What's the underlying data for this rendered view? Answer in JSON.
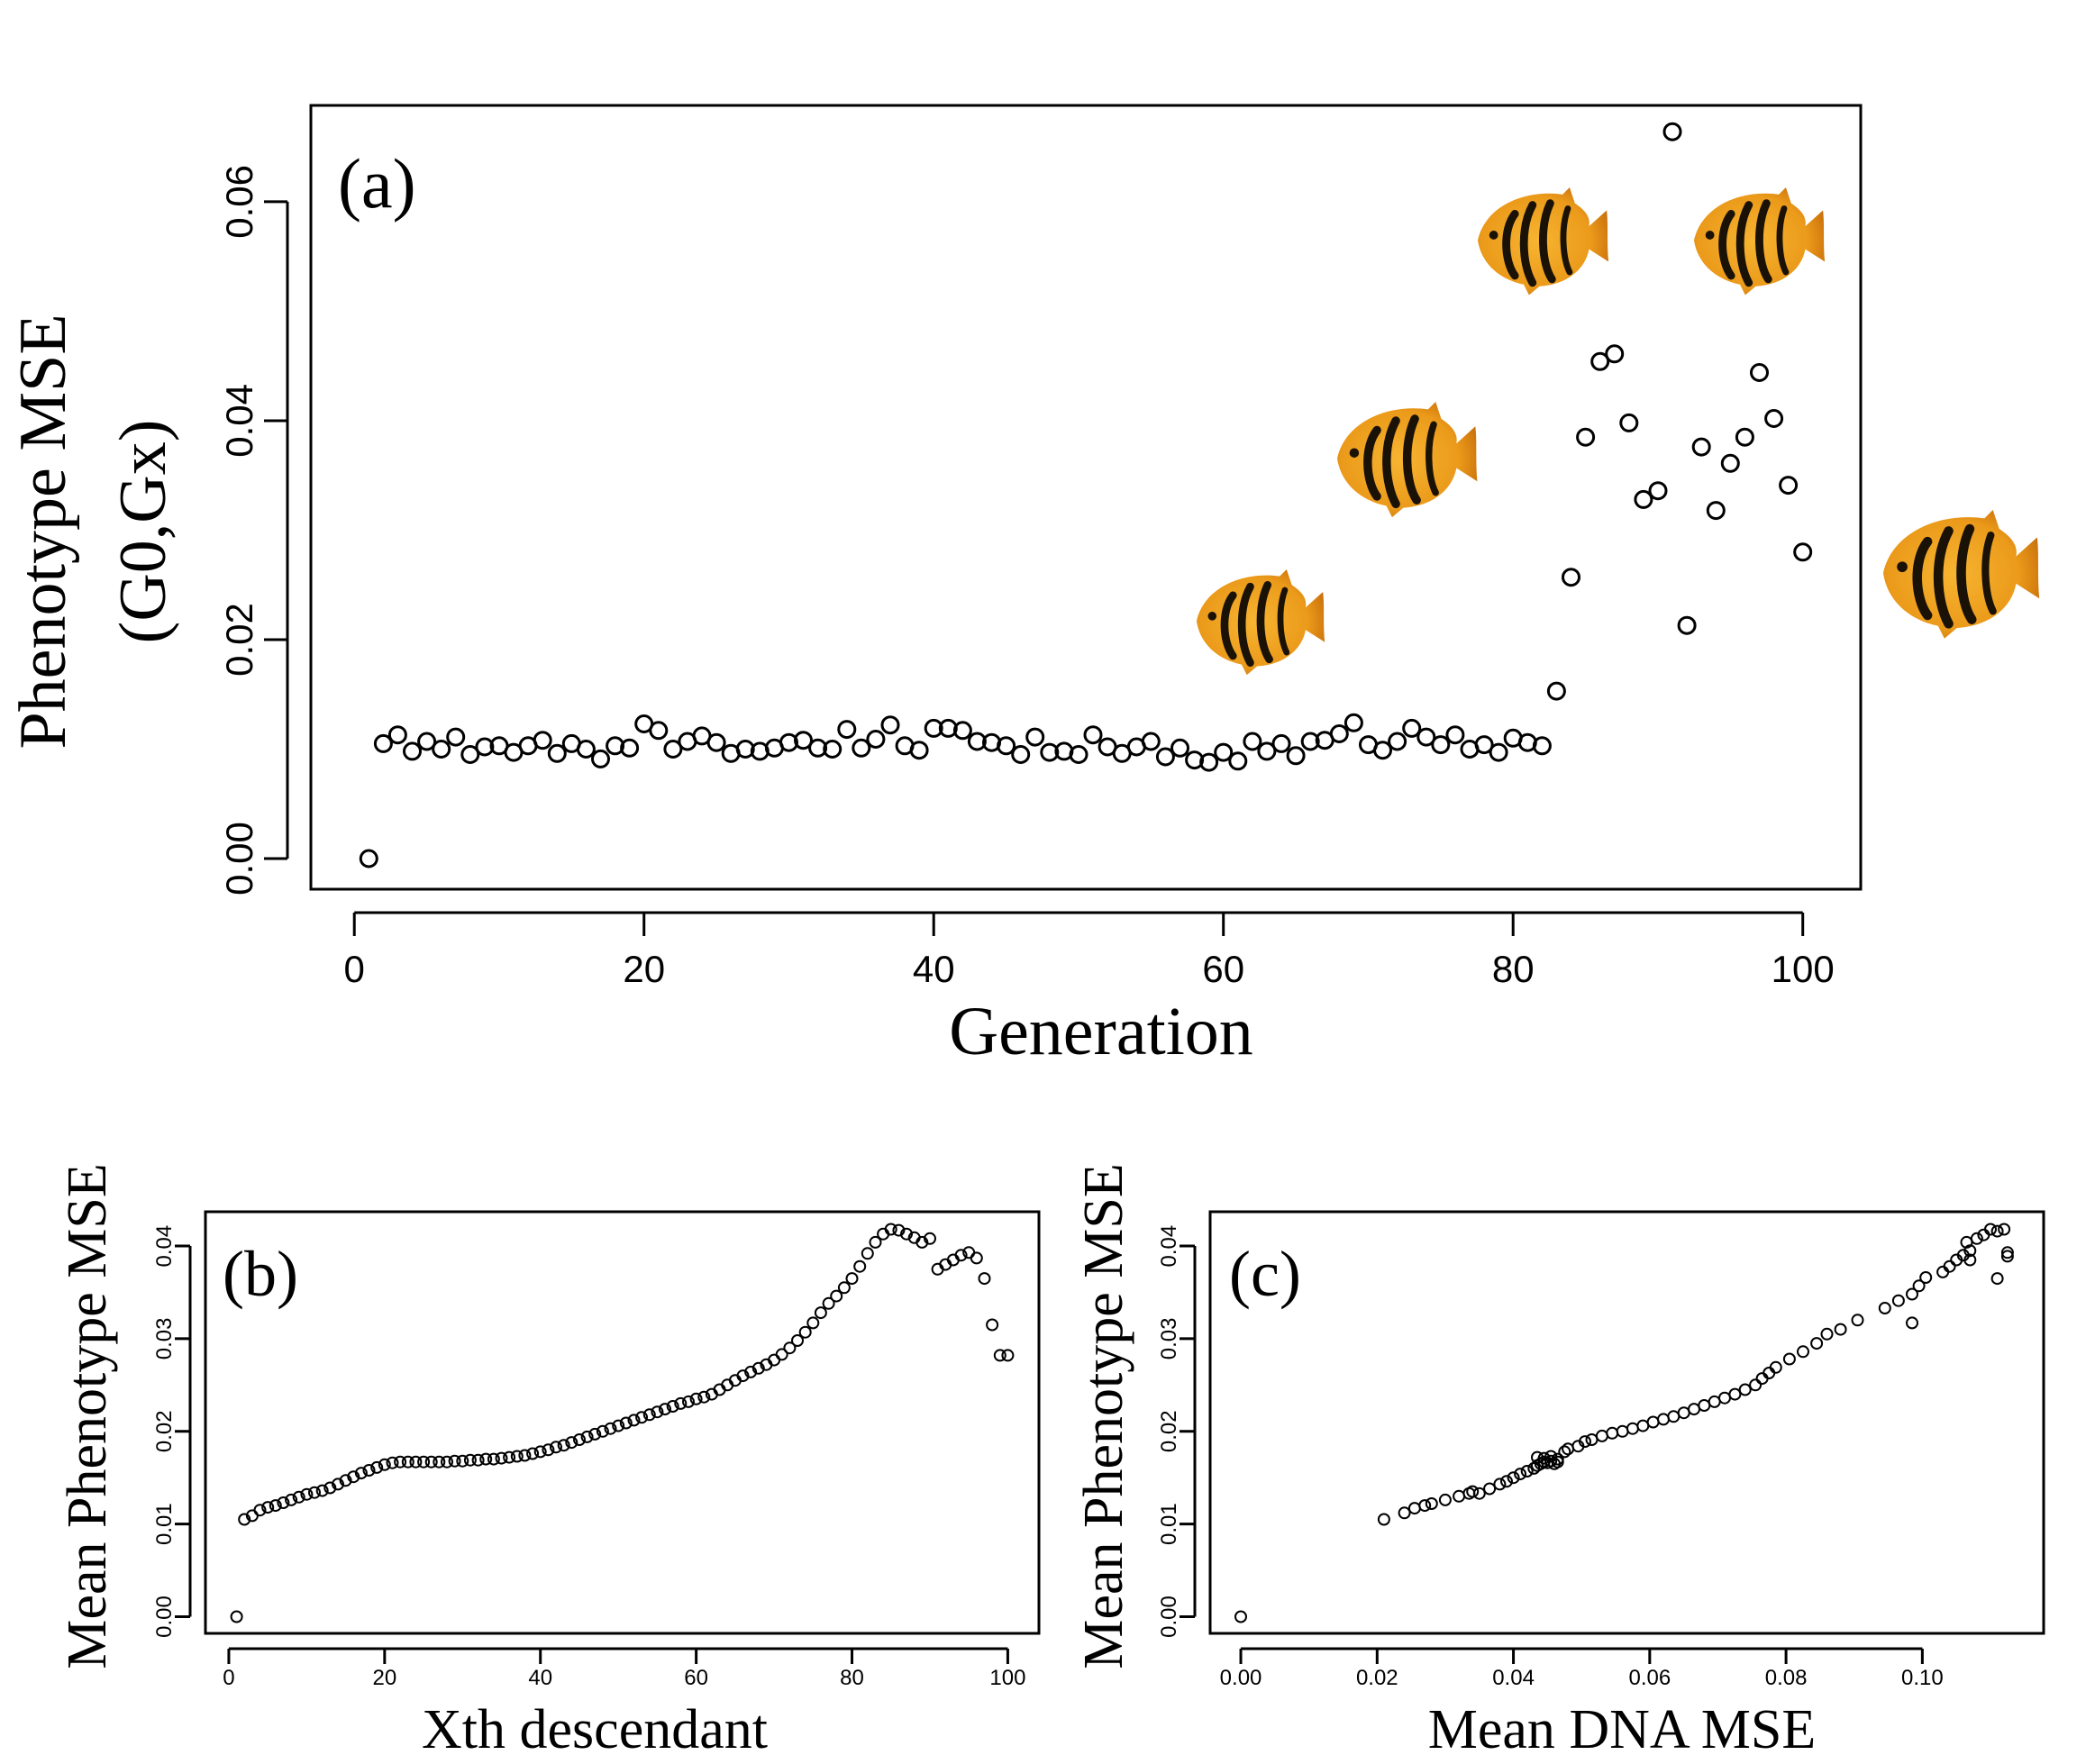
{
  "chart_data": [
    {
      "id": "a",
      "type": "scatter",
      "panel_label": "(a)",
      "xlabel": "Generation",
      "ylabel": [
        "Phenotype MSE",
        "(G0,Gx)"
      ],
      "xlim": [
        -3,
        104
      ],
      "ylim": [
        -0.0028,
        0.0688
      ],
      "xticks": [
        0,
        20,
        40,
        60,
        80,
        100
      ],
      "xtick_labels": [
        "0",
        "20",
        "40",
        "60",
        "80",
        "100"
      ],
      "yticks": [
        0,
        0.02,
        0.04,
        0.06
      ],
      "ytick_labels": [
        "0.00",
        "0.02",
        "0.04",
        "0.06"
      ],
      "x": [
        1,
        2,
        3,
        4,
        5,
        6,
        7,
        8,
        9,
        10,
        11,
        12,
        13,
        14,
        15,
        16,
        17,
        18,
        19,
        20,
        21,
        22,
        23,
        24,
        25,
        26,
        27,
        28,
        29,
        30,
        31,
        32,
        33,
        34,
        35,
        36,
        37,
        38,
        39,
        40,
        41,
        42,
        43,
        44,
        45,
        46,
        47,
        48,
        49,
        50,
        51,
        52,
        53,
        54,
        55,
        56,
        57,
        58,
        59,
        60,
        61,
        62,
        63,
        64,
        65,
        66,
        67,
        68,
        69,
        70,
        71,
        72,
        73,
        74,
        75,
        76,
        77,
        78,
        79,
        80,
        81,
        82,
        83,
        84,
        85,
        86,
        87,
        88,
        89,
        90,
        91,
        92,
        93,
        94,
        95,
        96,
        97,
        98,
        99,
        100
      ],
      "y": [
        0.0,
        0.0105,
        0.0113,
        0.0098,
        0.0107,
        0.01,
        0.0111,
        0.0095,
        0.0102,
        0.0103,
        0.0097,
        0.0103,
        0.0108,
        0.0096,
        0.0105,
        0.01,
        0.0091,
        0.0103,
        0.0101,
        0.0123,
        0.0117,
        0.01,
        0.0107,
        0.0112,
        0.0106,
        0.0096,
        0.01,
        0.0098,
        0.0101,
        0.0106,
        0.0108,
        0.0101,
        0.01,
        0.0118,
        0.0101,
        0.0109,
        0.0122,
        0.0103,
        0.0099,
        0.0119,
        0.0119,
        0.0117,
        0.0107,
        0.0106,
        0.0103,
        0.0095,
        0.0111,
        0.0097,
        0.0098,
        0.0095,
        0.0113,
        0.0102,
        0.0096,
        0.0102,
        0.0107,
        0.0093,
        0.0101,
        0.009,
        0.0088,
        0.0097,
        0.0089,
        0.0107,
        0.0098,
        0.0105,
        0.0094,
        0.0107,
        0.0108,
        0.0114,
        0.0124,
        0.0104,
        0.0099,
        0.0107,
        0.0119,
        0.0111,
        0.0104,
        0.0113,
        0.01,
        0.0104,
        0.0097,
        0.011,
        0.0106,
        0.0103,
        0.0153,
        0.0257,
        0.0385,
        0.0454,
        0.0461,
        0.0398,
        0.0328,
        0.0336,
        0.0664,
        0.0213,
        0.0376,
        0.0318,
        0.0361,
        0.0385,
        0.0444,
        0.0402,
        0.0341,
        0.028
      ],
      "markers": "open circles",
      "grid": false
    },
    {
      "id": "b",
      "type": "scatter",
      "panel_label": "(b)",
      "xlabel": "Xth descendant",
      "ylabel": "Mean Phenotype MSE",
      "xlim": [
        -3,
        104
      ],
      "ylim": [
        -0.0018,
        0.0437
      ],
      "xticks": [
        0,
        20,
        40,
        60,
        80,
        100
      ],
      "xtick_labels": [
        "0",
        "20",
        "40",
        "60",
        "80",
        "100"
      ],
      "yticks": [
        0,
        0.01,
        0.02,
        0.03,
        0.04
      ],
      "ytick_labels": [
        "0.00",
        "0.01",
        "0.02",
        "0.03",
        "0.04"
      ],
      "x": [
        1,
        2,
        3,
        4,
        5,
        6,
        7,
        8,
        9,
        10,
        11,
        12,
        13,
        14,
        15,
        16,
        17,
        18,
        19,
        20,
        21,
        22,
        23,
        24,
        25,
        26,
        27,
        28,
        29,
        30,
        31,
        32,
        33,
        34,
        35,
        36,
        37,
        38,
        39,
        40,
        41,
        42,
        43,
        44,
        45,
        46,
        47,
        48,
        49,
        50,
        51,
        52,
        53,
        54,
        55,
        56,
        57,
        58,
        59,
        60,
        61,
        62,
        63,
        64,
        65,
        66,
        67,
        68,
        69,
        70,
        71,
        72,
        73,
        74,
        75,
        76,
        77,
        78,
        79,
        80,
        81,
        82,
        83,
        84,
        85,
        86,
        87,
        88,
        89,
        90,
        91,
        92,
        93,
        94,
        95,
        96,
        97,
        98,
        99,
        100
      ],
      "y": [
        0.0,
        0.0105,
        0.0109,
        0.0115,
        0.0118,
        0.012,
        0.0123,
        0.0126,
        0.0129,
        0.0132,
        0.0134,
        0.0136,
        0.0139,
        0.0143,
        0.0147,
        0.0151,
        0.0155,
        0.0158,
        0.0161,
        0.0164,
        0.0166,
        0.0167,
        0.0167,
        0.0167,
        0.0167,
        0.0167,
        0.0167,
        0.0167,
        0.0168,
        0.0168,
        0.0169,
        0.0169,
        0.017,
        0.017,
        0.0171,
        0.0172,
        0.0173,
        0.0174,
        0.0176,
        0.0178,
        0.018,
        0.0183,
        0.0185,
        0.0188,
        0.0191,
        0.0194,
        0.0197,
        0.02,
        0.0203,
        0.0206,
        0.0209,
        0.0212,
        0.0215,
        0.0218,
        0.0221,
        0.0224,
        0.0227,
        0.023,
        0.0232,
        0.0235,
        0.0237,
        0.024,
        0.0245,
        0.025,
        0.0255,
        0.026,
        0.0264,
        0.0268,
        0.0272,
        0.0277,
        0.0283,
        0.029,
        0.0298,
        0.0307,
        0.0317,
        0.0328,
        0.0338,
        0.0346,
        0.0355,
        0.0365,
        0.0378,
        0.0392,
        0.0404,
        0.0413,
        0.0418,
        0.0417,
        0.0413,
        0.0409,
        0.0404,
        0.0408,
        0.0375,
        0.038,
        0.0385,
        0.039,
        0.0393,
        0.0387,
        0.0365,
        0.0315,
        0.0282,
        0.0282
      ],
      "markers": "open circles",
      "grid": false
    },
    {
      "id": "c",
      "type": "scatter",
      "panel_label": "(c)",
      "xlabel": "Mean DNA MSE",
      "ylabel": "Mean Phenotype MSE",
      "xlim": [
        -0.0045,
        0.1178
      ],
      "ylim": [
        -0.0018,
        0.0437
      ],
      "xticks": [
        0,
        0.02,
        0.04,
        0.06,
        0.08,
        0.1
      ],
      "xtick_labels": [
        "0.00",
        "0.02",
        "0.04",
        "0.06",
        "0.08",
        "0.10"
      ],
      "yticks": [
        0,
        0.01,
        0.02,
        0.03,
        0.04
      ],
      "ytick_labels": [
        "0.00",
        "0.01",
        "0.02",
        "0.03",
        "0.04"
      ],
      "x": [
        0.0,
        0.021,
        0.024,
        0.0255,
        0.027,
        0.028,
        0.03,
        0.032,
        0.0335,
        0.034,
        0.035,
        0.0365,
        0.038,
        0.039,
        0.04,
        0.041,
        0.042,
        0.043,
        0.0435,
        0.044,
        0.0445,
        0.045,
        0.0455,
        0.046,
        0.0465,
        0.0435,
        0.0445,
        0.0455,
        0.0465,
        0.0475,
        0.048,
        0.0495,
        0.0505,
        0.0515,
        0.053,
        0.0545,
        0.056,
        0.0575,
        0.059,
        0.0605,
        0.062,
        0.0635,
        0.065,
        0.0665,
        0.068,
        0.0695,
        0.071,
        0.0725,
        0.074,
        0.0755,
        0.0765,
        0.0775,
        0.0785,
        0.0805,
        0.0825,
        0.0845,
        0.086,
        0.088,
        0.0905,
        0.0945,
        0.0965,
        0.0985,
        0.0995,
        0.1005,
        0.103,
        0.104,
        0.105,
        0.106,
        0.1065,
        0.107,
        0.108,
        0.109,
        0.11,
        0.111,
        0.112,
        0.1125,
        0.1125,
        0.111,
        0.107,
        0.0985
      ],
      "y": [
        0.0,
        0.0105,
        0.0112,
        0.0117,
        0.012,
        0.0122,
        0.0126,
        0.013,
        0.0133,
        0.0135,
        0.0133,
        0.0138,
        0.0143,
        0.0146,
        0.015,
        0.0154,
        0.0157,
        0.016,
        0.0163,
        0.0165,
        0.0167,
        0.0166,
        0.0168,
        0.0165,
        0.0167,
        0.0172,
        0.0171,
        0.0173,
        0.017,
        0.0178,
        0.0181,
        0.0184,
        0.0189,
        0.0191,
        0.0195,
        0.0198,
        0.02,
        0.0203,
        0.0206,
        0.021,
        0.0213,
        0.0216,
        0.022,
        0.0224,
        0.0228,
        0.0232,
        0.0236,
        0.024,
        0.0245,
        0.025,
        0.0257,
        0.0263,
        0.0269,
        0.0278,
        0.0286,
        0.0295,
        0.0305,
        0.031,
        0.032,
        0.0333,
        0.0341,
        0.0348,
        0.0357,
        0.0366,
        0.0372,
        0.0378,
        0.0385,
        0.039,
        0.0404,
        0.0395,
        0.0408,
        0.0412,
        0.0418,
        0.0416,
        0.0418,
        0.0393,
        0.0389,
        0.0365,
        0.0385,
        0.0317
      ],
      "markers": "open circles",
      "grid": false
    }
  ],
  "decorations": {
    "fish_icon": "striped-orange-angelfish",
    "fish_colors": {
      "body": "#f0a21c",
      "body_dark": "#d27a10",
      "stripe": "#1a1206"
    }
  }
}
